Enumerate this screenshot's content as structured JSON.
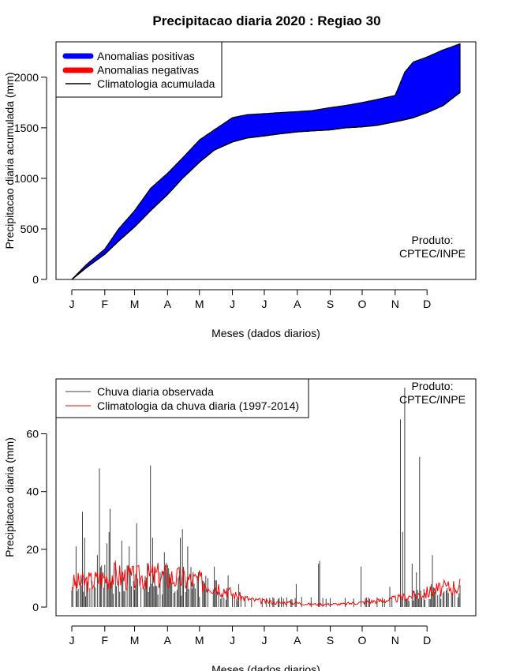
{
  "title": "Precipitacao diaria 2020 : Regiao 30",
  "colors": {
    "positive": "#0000FF",
    "negative": "#FF0000",
    "observed": "#404040",
    "climatology": "#FF0000"
  },
  "month_labels": [
    "J",
    "F",
    "M",
    "A",
    "M",
    "J",
    "J",
    "A",
    "S",
    "O",
    "N",
    "D"
  ],
  "chart_data": [
    {
      "type": "area",
      "xlabel": "Meses (dados diarios)",
      "ylabel": "Precipitacao diaria acumulada (mm)",
      "ylim": [
        0,
        2350
      ],
      "yticks": [
        0,
        500,
        1000,
        1500,
        2000
      ],
      "legend_position": "top-left",
      "legend": [
        "Anomalias positivas",
        "Anomalias negativas",
        "Climatologia acumulada"
      ],
      "annotation": [
        "Produto:",
        "CPTEC/INPE"
      ],
      "x_day": [
        1,
        15,
        32,
        45,
        60,
        75,
        91,
        105,
        121,
        135,
        152,
        166,
        182,
        196,
        213,
        227,
        244,
        258,
        274,
        288,
        305,
        314,
        322,
        335,
        350,
        366
      ],
      "observed_cumulative": [
        0,
        150,
        300,
        500,
        680,
        900,
        1050,
        1200,
        1380,
        1480,
        1600,
        1630,
        1640,
        1650,
        1660,
        1670,
        1700,
        1720,
        1750,
        1780,
        1820,
        2050,
        2150,
        2200,
        2270,
        2330
      ],
      "climatology_cumulative": [
        0,
        120,
        250,
        380,
        520,
        680,
        840,
        1000,
        1160,
        1280,
        1360,
        1400,
        1420,
        1440,
        1460,
        1470,
        1480,
        1500,
        1510,
        1525,
        1560,
        1580,
        1600,
        1650,
        1720,
        1850
      ]
    },
    {
      "type": "bar",
      "xlabel": "Meses (dados diarios)",
      "ylabel": "Precipitacao diaria (mm)",
      "ylim": [
        -3,
        79
      ],
      "yticks": [
        0,
        20,
        40,
        60
      ],
      "legend_position": "top-left",
      "legend": [
        "Chuva diaria observada",
        "Climatologia da chuva diaria (1997-2014)"
      ],
      "annotation": [
        "Produto:",
        "CPTEC/INPE"
      ],
      "observed_peaks": [
        {
          "day": 5,
          "value": 21
        },
        {
          "day": 11,
          "value": 33
        },
        {
          "day": 13,
          "value": 24
        },
        {
          "day": 25,
          "value": 18
        },
        {
          "day": 27,
          "value": 48
        },
        {
          "day": 34,
          "value": 22
        },
        {
          "day": 36,
          "value": 26
        },
        {
          "day": 37,
          "value": 34
        },
        {
          "day": 48,
          "value": 23
        },
        {
          "day": 55,
          "value": 21
        },
        {
          "day": 62,
          "value": 29
        },
        {
          "day": 75,
          "value": 49
        },
        {
          "day": 77,
          "value": 24
        },
        {
          "day": 88,
          "value": 19
        },
        {
          "day": 103,
          "value": 24
        },
        {
          "day": 105,
          "value": 27
        },
        {
          "day": 110,
          "value": 21
        },
        {
          "day": 135,
          "value": 14
        },
        {
          "day": 148,
          "value": 11
        },
        {
          "day": 158,
          "value": 8
        },
        {
          "day": 212,
          "value": 8
        },
        {
          "day": 233,
          "value": 15
        },
        {
          "day": 234,
          "value": 16
        },
        {
          "day": 273,
          "value": 14
        },
        {
          "day": 300,
          "value": 7
        },
        {
          "day": 310,
          "value": 65
        },
        {
          "day": 312,
          "value": 26
        },
        {
          "day": 314,
          "value": 76
        },
        {
          "day": 321,
          "value": 15
        },
        {
          "day": 325,
          "value": 12
        },
        {
          "day": 328,
          "value": 52
        },
        {
          "day": 340,
          "value": 18
        }
      ],
      "climatology_daily_x": [
        1,
        20,
        40,
        60,
        80,
        100,
        120,
        140,
        155,
        170,
        180,
        195,
        210,
        225,
        240,
        255,
        270,
        285,
        300,
        315,
        330,
        345,
        366
      ],
      "climatology_daily_y": [
        8,
        9,
        11,
        10,
        11,
        10,
        9,
        7,
        4,
        2.5,
        2,
        1.5,
        1.5,
        1,
        1,
        1,
        1.5,
        2,
        2.5,
        3.5,
        4.5,
        6,
        7.5
      ]
    }
  ]
}
